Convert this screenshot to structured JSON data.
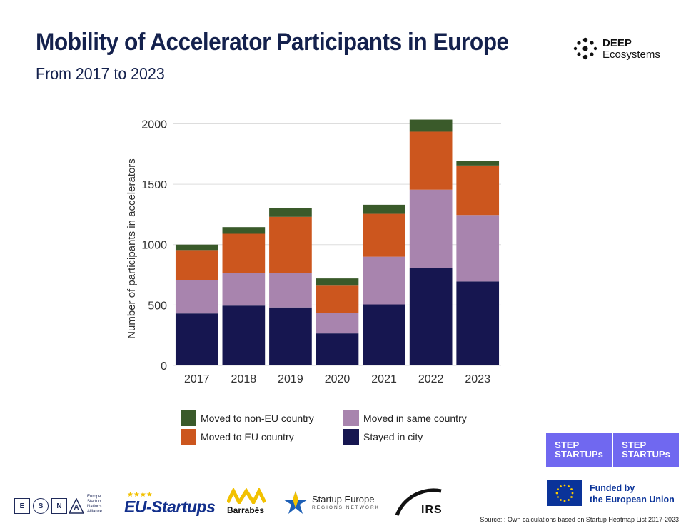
{
  "header": {
    "title": "Mobility of Accelerator Participants in Europe",
    "subtitle": "From 2017 to 2023"
  },
  "brand": {
    "deep_line1": "DEEP",
    "deep_line2": "Ecosystems"
  },
  "chart_data": {
    "type": "bar",
    "stacked": true,
    "categories": [
      "2017",
      "2018",
      "2019",
      "2020",
      "2021",
      "2022",
      "2023"
    ],
    "ylabel": "Number of participants in accelerators",
    "ylim": [
      0,
      2050
    ],
    "yticks": [
      0,
      500,
      1000,
      1500,
      2000
    ],
    "grid": true,
    "series": [
      {
        "name": "Stayed in city",
        "color": "#161650",
        "values": [
          430,
          495,
          480,
          265,
          505,
          805,
          695
        ]
      },
      {
        "name": "Moved in same country",
        "color": "#a884ae",
        "values": [
          275,
          270,
          285,
          170,
          395,
          650,
          550
        ]
      },
      {
        "name": "Moved to EU country",
        "color": "#cc561e",
        "values": [
          250,
          325,
          465,
          225,
          355,
          480,
          410
        ]
      },
      {
        "name": "Moved to non-EU country",
        "color": "#3a5a2a",
        "values": [
          45,
          55,
          70,
          60,
          75,
          100,
          35
        ]
      }
    ]
  },
  "legend": {
    "items": [
      {
        "label": "Moved to non-EU country",
        "color": "#3a5a2a"
      },
      {
        "label": "Moved in same country",
        "color": "#a884ae"
      },
      {
        "label": "Moved to EU country",
        "color": "#cc561e"
      },
      {
        "label": "Stayed in city",
        "color": "#161650"
      }
    ]
  },
  "badges": {
    "step_line1": "STEP",
    "step_line2": "STARTUPs",
    "funded_line1": "Funded by",
    "funded_line2": "the European Union"
  },
  "footer": {
    "esna_letters": [
      "E",
      "S",
      "N",
      "A"
    ],
    "esna_text": [
      "Europe",
      "Startup",
      "Nations",
      "Alliance"
    ],
    "eu_startups": "EU-Startups",
    "barrabes": "Barrabés",
    "startup_europe": "Startup Europe",
    "startup_europe_sub": "REGIONS NETWORK",
    "irs": "IRS",
    "source": "Source: : Own calculations based on Startup Heatmap List 2017-2023"
  }
}
